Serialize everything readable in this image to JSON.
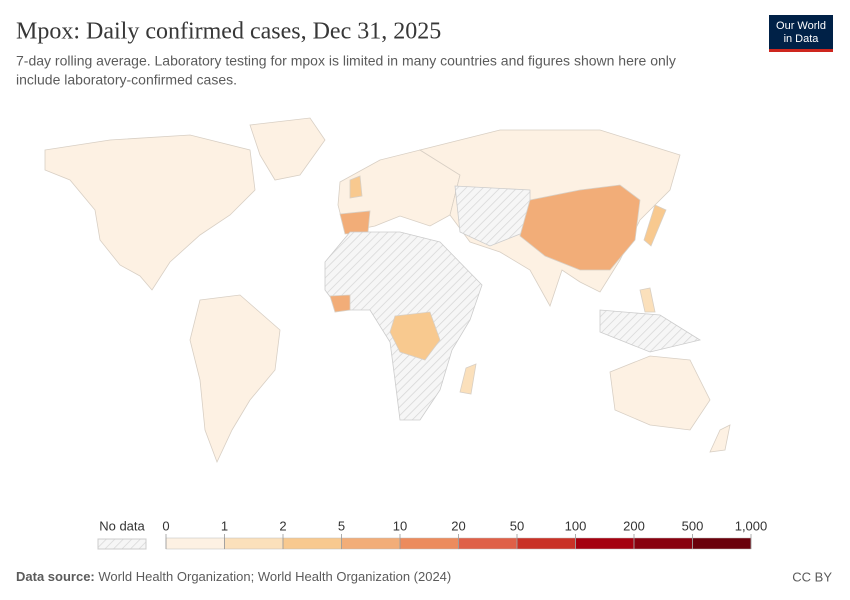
{
  "header": {
    "title": "Mpox: Daily confirmed cases, Dec 31, 2025",
    "subtitle_lines": [
      "7-day rolling average. Laboratory testing for mpox is limited in many countries and figures shown here only",
      "include laboratory-confirmed cases."
    ],
    "logo": [
      "Our World",
      "in Data"
    ]
  },
  "legend": {
    "no_data": "No data",
    "ticks": [
      0,
      1,
      2,
      5,
      10,
      20,
      50,
      100,
      200,
      500,
      {
        "value": 1000,
        "label": "1,000"
      }
    ],
    "colors": [
      "#fdf1e3",
      "#fbe0bb",
      "#f8c98f",
      "#f2ad78",
      "#ec8b5d",
      "#df6048",
      "#c93126",
      "#a5000f",
      "#88000e",
      "#6a000b"
    ]
  },
  "footer": {
    "source_label": "Data source:",
    "source": "World Health Organization; World Health Organization (2024)",
    "license": "CC BY"
  }
}
